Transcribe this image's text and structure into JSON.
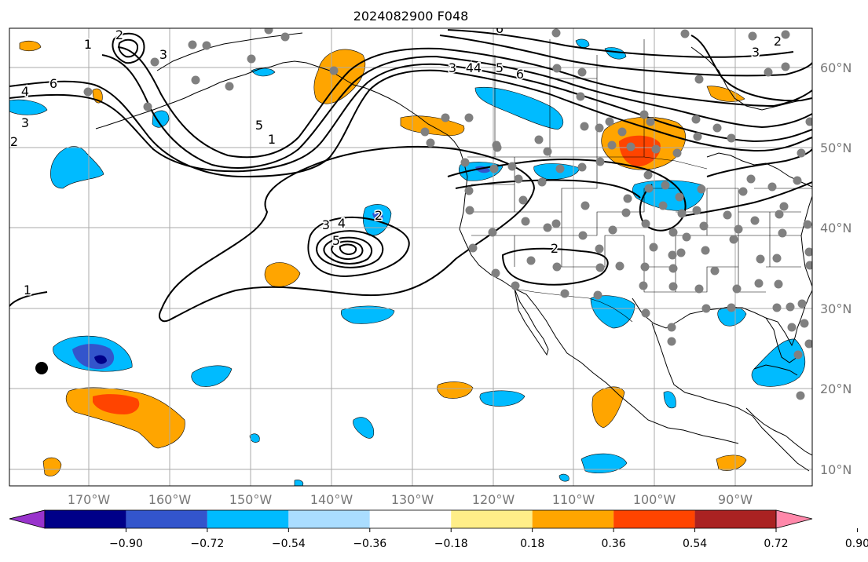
{
  "title": "2024082900 F048",
  "lon_labels": [
    "170°W",
    "160°W",
    "150°W",
    "140°W",
    "130°W",
    "120°W",
    "110°W",
    "100°W",
    "90°W"
  ],
  "lat_labels": [
    "60°N",
    "50°N",
    "40°N",
    "30°N",
    "20°N",
    "10°N"
  ],
  "colorbar": {
    "colors": [
      "#9933cc",
      "#000088",
      "#3355cc",
      "#00bbff",
      "#aaddff",
      "#ffffff",
      "#ffee88",
      "#ffa500",
      "#ff4400",
      "#aa2222",
      "#ff88aa"
    ],
    "tick_labels": [
      "−0.90",
      "−0.72",
      "−0.54",
      "−0.36",
      "−0.18",
      "0.18",
      "0.36",
      "0.54",
      "0.72",
      "0.90"
    ]
  },
  "contour_labels": [
    "2",
    "3",
    "6",
    "4",
    "3",
    "4",
    "6",
    "5",
    "1",
    "2",
    "3",
    "4",
    "5",
    "3",
    "4",
    "5",
    "6",
    "3",
    "2",
    "1",
    "2",
    "1",
    "2"
  ],
  "colors": {
    "gridline": "#aaaaaa",
    "tick_label": "#777777",
    "station": "#808080",
    "contour": "#000000"
  }
}
